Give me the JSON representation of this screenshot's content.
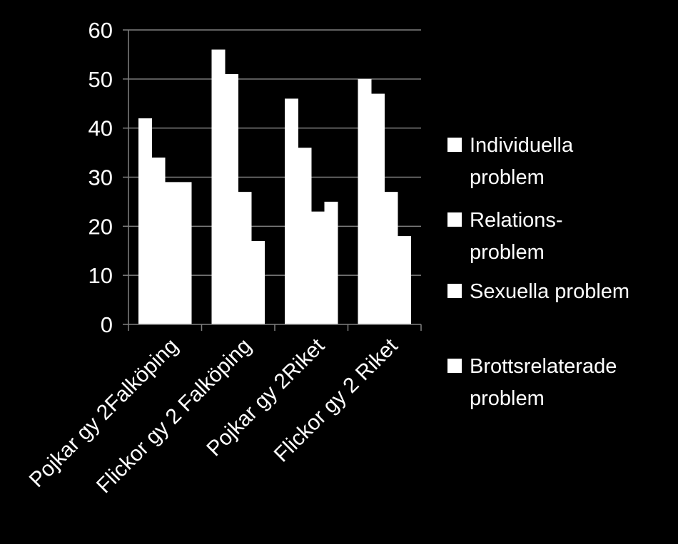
{
  "chart_data": {
    "type": "bar",
    "title": "",
    "xlabel": "",
    "ylabel": "",
    "ylim": [
      0,
      60
    ],
    "yticks": [
      0,
      10,
      20,
      30,
      40,
      50,
      60
    ],
    "grid": true,
    "legend_position": "right",
    "categories": [
      "Pojkar gy 2Falköping",
      "Flickor gy 2 Falköping",
      "Pojkar gy 2Riket",
      "Flickor gy 2 Riket"
    ],
    "series": [
      {
        "name": "Individuella problem",
        "legend_lines": [
          "Individuella",
          "problem"
        ],
        "values": [
          42,
          56,
          46,
          50
        ]
      },
      {
        "name": "Relations-problem",
        "legend_lines": [
          "Relations-",
          "problem"
        ],
        "values": [
          34,
          51,
          36,
          47
        ]
      },
      {
        "name": "Sexuella problem",
        "legend_lines": [
          "Sexuella problem"
        ],
        "values": [
          29,
          27,
          23,
          27
        ]
      },
      {
        "name": "Brottsrelaterade problem",
        "legend_lines": [
          "Brottsrelaterade",
          "problem"
        ],
        "values": [
          29,
          17,
          25,
          18
        ]
      }
    ],
    "colors": {
      "background": "#000000",
      "bars": "#ffffff",
      "axis": "#808080",
      "grid": "#808080",
      "text": "#ffffff"
    }
  }
}
